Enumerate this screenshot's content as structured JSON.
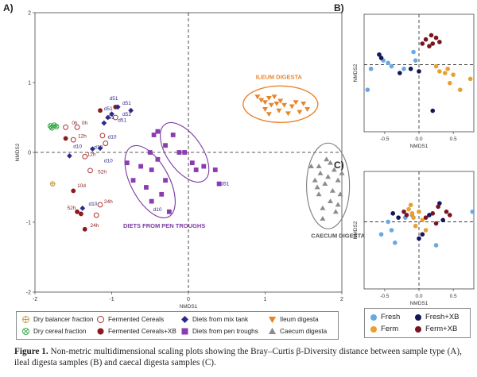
{
  "chart_data": [
    {
      "panel_label": "A)",
      "type": "scatter",
      "xlabel": "NMDS1",
      "ylabel": "NMDS2",
      "xlim": [
        -2,
        2
      ],
      "ylim": [
        -2,
        2
      ],
      "xticks": [
        "-2",
        "-1",
        "0",
        "1",
        "2"
      ],
      "yticks": [
        "-2",
        "-1",
        "0",
        "1",
        "2"
      ],
      "grid": false,
      "legend_position": "bottom",
      "series": [
        {
          "name": "Dry balancer fraction",
          "color": "#c8a04a",
          "marker": "circle-plus",
          "points": [
            [
              -1.77,
              -0.45
            ]
          ]
        },
        {
          "name": "Dry cereal fraction",
          "color": "#3aa84a",
          "marker": "circle-x",
          "points": [
            [
              -1.8,
              0.38
            ],
            [
              -1.75,
              0.39
            ],
            [
              -1.72,
              0.37
            ],
            [
              -1.78,
              0.35
            ]
          ]
        },
        {
          "name": "Fermented Cereals",
          "color": "#b03030",
          "marker": "open-circle",
          "points": [
            [
              -1.6,
              0.36
            ],
            [
              -1.45,
              0.36
            ],
            [
              -1.5,
              0.18
            ],
            [
              -1.35,
              -0.06
            ],
            [
              -1.28,
              -0.26
            ],
            [
              -1.15,
              -0.75
            ],
            [
              -1.2,
              -0.9
            ],
            [
              -1.08,
              0.13
            ],
            [
              -1.12,
              0.24
            ],
            [
              -0.95,
              0.5
            ]
          ]
        },
        {
          "name": "Fermented Cereals+XB",
          "color": "#8b1a1a",
          "marker": "filled-circle",
          "points": [
            [
              -1.6,
              0.2
            ],
            [
              -1.5,
              -0.55
            ],
            [
              -1.45,
              -0.85
            ],
            [
              -1.4,
              -0.88
            ],
            [
              -1.35,
              -1.1
            ],
            [
              -1.15,
              0.6
            ],
            [
              -0.95,
              0.65
            ]
          ]
        },
        {
          "name": "Diets from mix tank",
          "color": "#2e2a8a",
          "marker": "diamond",
          "points": [
            [
              -1.55,
              -0.05
            ],
            [
              -1.38,
              -0.8
            ],
            [
              -1.25,
              0.05
            ],
            [
              -1.15,
              0.06
            ],
            [
              -1.1,
              0.42
            ],
            [
              -1.05,
              0.5
            ],
            [
              -1.0,
              0.55
            ],
            [
              -0.92,
              0.65
            ],
            [
              -0.75,
              0.6
            ]
          ]
        },
        {
          "name": "Diets from pen troughs",
          "color": "#8a3cb0",
          "marker": "square",
          "points": [
            [
              -0.8,
              -0.15
            ],
            [
              -0.72,
              -0.4
            ],
            [
              -0.62,
              -0.2
            ],
            [
              -0.55,
              -0.5
            ],
            [
              -0.48,
              -0.7
            ],
            [
              -0.48,
              -0.25
            ],
            [
              -0.4,
              -0.1
            ],
            [
              -0.35,
              -0.6
            ],
            [
              -0.3,
              -0.4
            ],
            [
              -0.25,
              -0.85
            ],
            [
              -0.5,
              0.0
            ],
            [
              -0.45,
              0.25
            ],
            [
              -0.4,
              0.3
            ],
            [
              -0.3,
              0.1
            ],
            [
              -0.2,
              0.25
            ],
            [
              -0.12,
              0.0
            ],
            [
              -0.05,
              0.0
            ],
            [
              0.05,
              -0.15
            ],
            [
              0.1,
              -0.25
            ],
            [
              0.2,
              -0.2
            ],
            [
              0.35,
              -0.25
            ],
            [
              0.4,
              -0.45
            ]
          ]
        },
        {
          "name": "Ileum digesta",
          "color": "#e8852b",
          "marker": "triangle-down",
          "points": [
            [
              0.9,
              0.8
            ],
            [
              0.95,
              0.75
            ],
            [
              1.0,
              0.72
            ],
            [
              1.05,
              0.78
            ],
            [
              1.0,
              0.62
            ],
            [
              1.08,
              0.68
            ],
            [
              1.12,
              0.8
            ],
            [
              1.15,
              0.7
            ],
            [
              1.18,
              0.6
            ],
            [
              1.2,
              0.74
            ],
            [
              1.25,
              0.68
            ],
            [
              1.3,
              0.56
            ],
            [
              1.35,
              0.66
            ],
            [
              1.4,
              0.72
            ],
            [
              1.45,
              0.58
            ],
            [
              1.5,
              0.7
            ],
            [
              1.55,
              0.62
            ],
            [
              1.05,
              0.55
            ]
          ]
        },
        {
          "name": "Caecum digesta",
          "color": "#8c8c8c",
          "marker": "triangle-up",
          "points": [
            [
              1.6,
              -0.2
            ],
            [
              1.65,
              -0.4
            ],
            [
              1.68,
              -0.5
            ],
            [
              1.7,
              -0.6
            ],
            [
              1.72,
              -0.3
            ],
            [
              1.75,
              -0.8
            ],
            [
              1.78,
              -0.45
            ],
            [
              1.8,
              -0.1
            ],
            [
              1.82,
              -0.35
            ],
            [
              1.85,
              -0.7
            ],
            [
              1.88,
              -0.55
            ],
            [
              1.9,
              -0.25
            ],
            [
              1.92,
              -0.85
            ],
            [
              1.95,
              -0.4
            ],
            [
              1.98,
              -0.6
            ],
            [
              2.0,
              -0.3
            ],
            [
              1.75,
              -0.95
            ],
            [
              1.7,
              -0.2
            ],
            [
              1.85,
              -0.15
            ],
            [
              1.95,
              -0.75
            ]
          ]
        }
      ],
      "annotations": {
        "group_labels": [
          "ILEUM DIGESTA",
          "DIETS FROM PEN TROUGHS",
          "CAECUM DIGESTA"
        ],
        "point_labels": [
          {
            "text": "0h",
            "x": -1.52,
            "y": 0.4
          },
          {
            "text": "0h",
            "x": -1.39,
            "y": 0.4
          },
          {
            "text": "12h",
            "x": -1.44,
            "y": 0.21
          },
          {
            "text": "12h",
            "x": -1.32,
            "y": -0.05
          },
          {
            "text": "d10",
            "x": -1.5,
            "y": 0.06
          },
          {
            "text": "d10",
            "x": -1.23,
            "y": 0.05
          },
          {
            "text": "d10",
            "x": -1.05,
            "y": 0.2
          },
          {
            "text": "d10",
            "x": -1.1,
            "y": -0.14
          },
          {
            "text": "d10",
            "x": -1.3,
            "y": -0.76
          },
          {
            "text": "10d",
            "x": -1.45,
            "y": -0.5
          },
          {
            "text": "52h",
            "x": -1.58,
            "y": -0.82
          },
          {
            "text": "52h",
            "x": -1.18,
            "y": -0.3
          },
          {
            "text": "24h",
            "x": -1.1,
            "y": -0.73
          },
          {
            "text": "24h",
            "x": -1.28,
            "y": -1.07
          },
          {
            "text": "d51",
            "x": -1.03,
            "y": 0.75
          },
          {
            "text": "d51",
            "x": -0.86,
            "y": 0.68
          },
          {
            "text": "d51",
            "x": -1.1,
            "y": 0.6
          },
          {
            "text": "d51",
            "x": -1.08,
            "y": 0.48
          },
          {
            "text": "d51",
            "x": -0.86,
            "y": 0.52
          },
          {
            "text": "d51",
            "x": -0.92,
            "y": 0.44
          },
          {
            "text": "d51",
            "x": 0.42,
            "y": -0.47
          },
          {
            "text": "d10",
            "x": -0.46,
            "y": -0.84
          }
        ]
      }
    },
    {
      "panel_label": "B)",
      "type": "scatter",
      "xlabel": "NMDS1",
      "ylabel": "NMDS2",
      "xlim": [
        -0.8,
        0.8
      ],
      "ylim": [
        -0.8,
        0.6
      ],
      "xticks": [
        "-0.5",
        "0.0",
        "0.5"
      ],
      "grid": false,
      "series": [
        {
          "name": "Fresh",
          "color": "#6aa8e0",
          "points": [
            [
              -0.75,
              -0.3
            ],
            [
              -0.7,
              -0.05
            ],
            [
              -0.52,
              0.05
            ],
            [
              -0.45,
              0.02
            ],
            [
              -0.4,
              -0.02
            ],
            [
              -0.22,
              -0.05
            ],
            [
              -0.08,
              0.15
            ],
            [
              -0.05,
              0.05
            ]
          ]
        },
        {
          "name": "Ferm",
          "color": "#e8a030",
          "points": [
            [
              0.25,
              -0.02
            ],
            [
              0.3,
              -0.08
            ],
            [
              0.38,
              -0.1
            ],
            [
              0.42,
              -0.05
            ],
            [
              0.45,
              -0.22
            ],
            [
              0.5,
              -0.12
            ],
            [
              0.75,
              -0.17
            ],
            [
              0.6,
              -0.3
            ]
          ]
        },
        {
          "name": "Fresh+XB",
          "color": "#15155a",
          "points": [
            [
              -0.58,
              0.12
            ],
            [
              -0.55,
              0.08
            ],
            [
              -0.28,
              -0.1
            ],
            [
              -0.12,
              -0.05
            ],
            [
              0.0,
              -0.08
            ],
            [
              0.2,
              -0.55
            ]
          ]
        },
        {
          "name": "Ferm+XB",
          "color": "#7a1520",
          "points": [
            [
              0.05,
              0.25
            ],
            [
              0.1,
              0.3
            ],
            [
              0.15,
              0.22
            ],
            [
              0.18,
              0.35
            ],
            [
              0.2,
              0.25
            ],
            [
              0.25,
              0.32
            ],
            [
              0.3,
              0.27
            ]
          ]
        }
      ]
    },
    {
      "panel_label": "C)",
      "type": "scatter",
      "xlabel": "NMDS1",
      "ylabel": "NMDS2",
      "xlim": [
        -0.8,
        0.8
      ],
      "ylim": [
        -0.8,
        0.6
      ],
      "xticks": [
        "-0.5",
        "0.0",
        "0.5"
      ],
      "grid": false,
      "legend_position": "bottom",
      "series": [
        {
          "name": "Fresh",
          "color": "#6aa8e0",
          "points": [
            [
              -0.45,
              0.0
            ],
            [
              -0.4,
              -0.1
            ],
            [
              -0.35,
              -0.25
            ],
            [
              -0.2,
              0.05
            ],
            [
              -0.1,
              0.08
            ],
            [
              0.25,
              -0.28
            ],
            [
              0.78,
              0.12
            ],
            [
              -0.55,
              -0.15
            ]
          ]
        },
        {
          "name": "Ferm",
          "color": "#e8a030",
          "points": [
            [
              -0.15,
              0.15
            ],
            [
              -0.12,
              0.2
            ],
            [
              -0.1,
              0.1
            ],
            [
              -0.08,
              0.05
            ],
            [
              -0.05,
              -0.05
            ],
            [
              0.0,
              0.12
            ],
            [
              0.05,
              0.02
            ],
            [
              0.1,
              -0.1
            ]
          ]
        },
        {
          "name": "Fresh+XB",
          "color": "#15155a",
          "points": [
            [
              -0.38,
              0.1
            ],
            [
              -0.3,
              0.05
            ],
            [
              0.0,
              -0.2
            ],
            [
              0.05,
              -0.15
            ],
            [
              0.15,
              0.08
            ],
            [
              0.3,
              0.22
            ],
            [
              0.35,
              0.02
            ]
          ]
        },
        {
          "name": "Ferm+XB",
          "color": "#7a1520",
          "points": [
            [
              -0.22,
              0.12
            ],
            [
              -0.18,
              0.08
            ],
            [
              0.1,
              0.05
            ],
            [
              0.2,
              0.1
            ],
            [
              0.25,
              -0.02
            ],
            [
              0.28,
              0.18
            ],
            [
              0.4,
              0.12
            ],
            [
              0.45,
              0.08
            ]
          ]
        }
      ]
    }
  ],
  "caption": {
    "label": "Figure 1.",
    "text": "Non-metric multidimensional scaling plots showing the Bray–Curtis β-Diversity distance between sample type (A), ileal digesta samples (B) and caecal digesta samples (C)."
  }
}
